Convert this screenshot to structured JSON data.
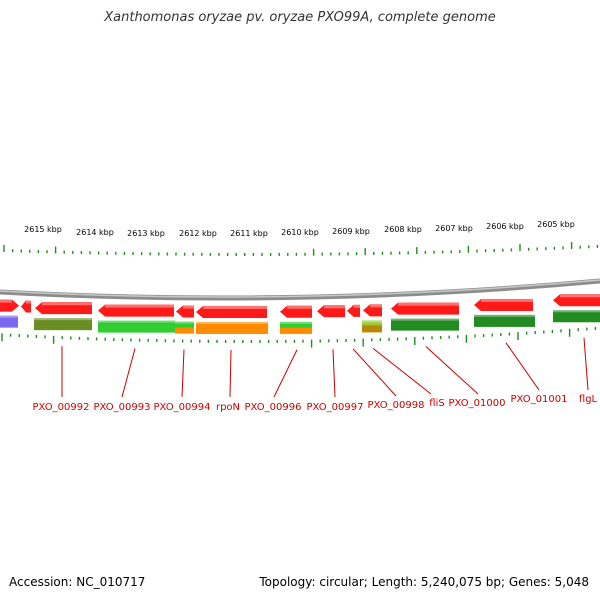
{
  "title": "Xanthomonas oryzae pv. oryzae PXO99A, complete genome",
  "footer": {
    "accession": "Accession: NC_010717",
    "stats": "Topology: circular; Length: 5,240,075 bp; Genes: 5,048"
  },
  "colors": {
    "gene_forward": "#ff1a1a",
    "backbone": "#8c8c8c",
    "tick": "#228b22",
    "label": "#cc0000",
    "cog_olive": "#6b8e23",
    "cog_green": "#32cd32",
    "cog_orange": "#ff8c00",
    "cog_darkgreen": "#228b22",
    "cog_purple": "#7b68ee",
    "cog_yellowgreen": "#9acd32"
  },
  "scale_labels": [
    "2615 kbp",
    "2614 kbp",
    "2613 kbp",
    "2612 kbp",
    "2611 kbp",
    "2610 kbp",
    "2609 kbp",
    "2608 kbp",
    "2607 kbp",
    "2606 kbp",
    "2605 kbp"
  ],
  "gene_labels": [
    "PXO_00992",
    "PXO_00993",
    "PXO_00994",
    "rpoN",
    "PXO_00996",
    "PXO_00997",
    "PXO_00998",
    "fliS",
    "PXO_01000",
    "PXO_01001",
    "flgL"
  ]
}
